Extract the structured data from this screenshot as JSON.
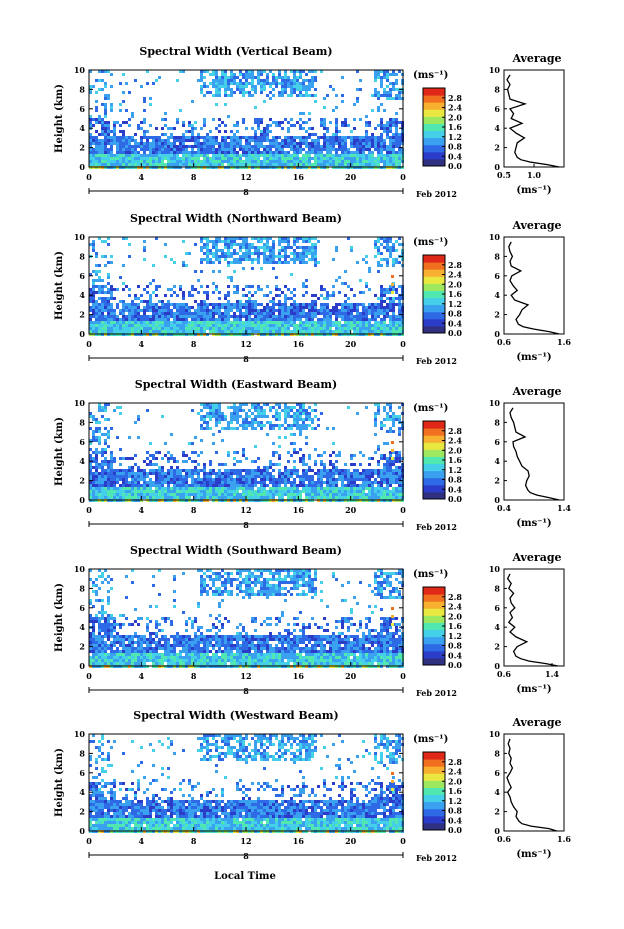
{
  "figure": {
    "x_axis_label": "Local Time",
    "date_label": "Feb 2012",
    "x_ticks": [
      "0",
      "4",
      "8",
      "12",
      "16",
      "20",
      "0"
    ],
    "day_marker": "8",
    "y_label": "Height (km)",
    "y_ticks": [
      "0",
      "2",
      "4",
      "6",
      "8",
      "10"
    ],
    "colorbar_unit": "(ms⁻¹)",
    "colorbar_ticks": [
      "0.0",
      "0.4",
      "0.8",
      "1.2",
      "1.6",
      "2.0",
      "2.4",
      "2.8"
    ],
    "profile_title": "Average",
    "profile_unit": "(ms⁻¹)",
    "colors": {
      "colorscale": [
        "#303080",
        "#2a3cc8",
        "#2f6ae6",
        "#3aa0f0",
        "#44d0e8",
        "#50e8b0",
        "#9ee860",
        "#e8e840",
        "#f8b030",
        "#f07020",
        "#e02818"
      ]
    }
  },
  "chart_data": [
    {
      "type": "heatmap",
      "title": "Spectral Width (Vertical Beam)",
      "xlabel": "Local Time",
      "ylabel": "Height (km)",
      "xlim": [
        0,
        24
      ],
      "ylim": [
        0,
        10
      ],
      "zlim": [
        0,
        3.2
      ],
      "profile": {
        "title": "Average",
        "xlabel": "(ms⁻¹)",
        "xlim": [
          0.5,
          1.5
        ],
        "xticks": [
          "0.5",
          "1.0"
        ],
        "height": [
          0,
          0.25,
          0.5,
          0.75,
          1,
          1.5,
          2,
          2.5,
          3,
          3.5,
          4,
          4.5,
          5,
          5.5,
          6,
          6.5,
          7,
          7.5,
          8,
          8.5,
          9,
          9.5
        ],
        "width": [
          1.42,
          1.22,
          0.95,
          0.78,
          0.72,
          0.68,
          0.7,
          0.72,
          0.84,
          0.7,
          0.6,
          0.8,
          0.62,
          0.66,
          0.6,
          0.85,
          0.6,
          0.58,
          0.56,
          0.6,
          0.55,
          0.6
        ]
      }
    },
    {
      "type": "heatmap",
      "title": "Spectral Width (Northward Beam)",
      "xlabel": "Local Time",
      "ylabel": "Height (km)",
      "xlim": [
        0,
        24
      ],
      "ylim": [
        0,
        10
      ],
      "zlim": [
        0,
        3.2
      ],
      "profile": {
        "title": "Average",
        "xlabel": "(ms⁻¹)",
        "xlim": [
          0.6,
          1.6
        ],
        "xticks": [
          "0.6",
          "1.6"
        ],
        "height": [
          0,
          0.25,
          0.5,
          0.75,
          1,
          1.5,
          2,
          2.5,
          3,
          3.5,
          4,
          4.5,
          5,
          5.5,
          6,
          6.5,
          7,
          7.5,
          8,
          8.5,
          9,
          9.5
        ],
        "width": [
          1.52,
          1.35,
          1.1,
          0.92,
          0.84,
          0.8,
          0.86,
          0.9,
          1.0,
          0.78,
          0.72,
          0.82,
          0.75,
          0.7,
          0.73,
          0.88,
          0.72,
          0.7,
          0.74,
          0.7,
          0.68,
          0.72
        ]
      }
    },
    {
      "type": "heatmap",
      "title": "Spectral Width (Eastward Beam)",
      "xlabel": "Local Time",
      "ylabel": "Height (km)",
      "xlim": [
        0,
        24
      ],
      "ylim": [
        0,
        10
      ],
      "zlim": [
        0,
        3.2
      ],
      "profile": {
        "title": "Average",
        "xlabel": "(ms⁻¹)",
        "xlim": [
          0.4,
          1.4
        ],
        "xticks": [
          "0.4",
          "1.4"
        ],
        "height": [
          0,
          0.25,
          0.5,
          0.75,
          1,
          1.5,
          2,
          2.5,
          3,
          3.5,
          4,
          4.5,
          5,
          5.5,
          6,
          6.5,
          7,
          7.5,
          8,
          8.5,
          9,
          9.5
        ],
        "width": [
          1.32,
          1.15,
          0.95,
          0.84,
          0.8,
          0.76,
          0.78,
          0.82,
          0.8,
          0.7,
          0.66,
          0.62,
          0.6,
          0.56,
          0.55,
          0.75,
          0.6,
          0.58,
          0.56,
          0.52,
          0.5,
          0.55
        ]
      }
    },
    {
      "type": "heatmap",
      "title": "Spectral Width (Southward Beam)",
      "xlabel": "Local Time",
      "ylabel": "Height (km)",
      "xlim": [
        0,
        24
      ],
      "ylim": [
        0,
        10
      ],
      "zlim": [
        0,
        3.2
      ],
      "profile": {
        "title": "Average",
        "xlabel": "(ms⁻¹)",
        "xlim": [
          0.6,
          1.6
        ],
        "xticks": [
          "0.6",
          "1.4"
        ],
        "height": [
          0,
          0.25,
          0.5,
          0.75,
          1,
          1.5,
          2,
          2.5,
          3,
          3.5,
          4,
          4.5,
          5,
          5.5,
          6,
          6.5,
          7,
          7.5,
          8,
          8.5,
          9,
          9.5
        ],
        "width": [
          1.5,
          1.3,
          1.02,
          0.88,
          0.8,
          0.76,
          0.82,
          0.98,
          0.8,
          0.7,
          0.78,
          0.68,
          0.74,
          0.7,
          0.78,
          0.72,
          0.7,
          0.76,
          0.68,
          0.72,
          0.66,
          0.7
        ]
      }
    },
    {
      "type": "heatmap",
      "title": "Spectral Width (Westward Beam)",
      "xlabel": "Local Time",
      "ylabel": "Height (km)",
      "xlim": [
        0,
        24
      ],
      "ylim": [
        0,
        10
      ],
      "zlim": [
        0,
        3.2
      ],
      "profile": {
        "title": "Average",
        "xlabel": "(ms⁻¹)",
        "xlim": [
          0.6,
          1.6
        ],
        "xticks": [
          "0.6",
          "1.6"
        ],
        "height": [
          0,
          0.25,
          0.5,
          0.75,
          1,
          1.5,
          2,
          2.5,
          3,
          3.5,
          4,
          4.5,
          5,
          5.5,
          6,
          6.5,
          7,
          7.5,
          8,
          8.5,
          9,
          9.5
        ],
        "width": [
          1.48,
          1.35,
          1.05,
          0.9,
          0.85,
          0.8,
          0.82,
          0.76,
          0.72,
          0.7,
          0.66,
          0.72,
          0.68,
          0.65,
          0.7,
          0.74,
          0.7,
          0.72,
          0.68,
          0.7,
          0.67,
          0.7
        ]
      }
    }
  ]
}
